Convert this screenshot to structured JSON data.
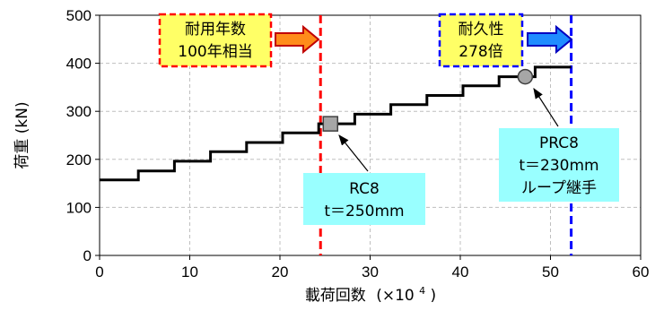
{
  "chart_data": {
    "type": "line",
    "title": "",
    "xlabel": "載荷回数",
    "xlabel_unit": "(×10",
    "xlabel_exp": "4",
    "xlabel_close": ")",
    "ylabel": "荷重 (kN)",
    "xlim": [
      0,
      60
    ],
    "ylim": [
      0,
      500
    ],
    "xticks": [
      0,
      10,
      20,
      30,
      40,
      50,
      60
    ],
    "yticks": [
      0,
      100,
      200,
      300,
      400,
      500
    ],
    "grid": true,
    "series": [
      {
        "type": "step",
        "color": "#000000",
        "x": [
          0,
          4.3,
          4.3,
          8.3,
          8.3,
          12.3,
          12.3,
          16.3,
          16.3,
          20.3,
          20.3,
          24.3,
          24.3,
          28.3,
          28.3,
          32.3,
          32.3,
          36.3,
          36.3,
          40.3,
          40.3,
          44.3,
          44.3,
          48.3,
          48.3,
          52.3
        ],
        "y": [
          157,
          157,
          176,
          176,
          196,
          196,
          216,
          216,
          235,
          235,
          255,
          255,
          274,
          274,
          294,
          294,
          314,
          314,
          333,
          333,
          353,
          353,
          372,
          372,
          392,
          392
        ]
      }
    ],
    "vertical_lines": [
      {
        "x": 24.5,
        "color": "#ff0000",
        "style": "dashed"
      },
      {
        "x": 52.3,
        "color": "#0000ff",
        "style": "dashed"
      }
    ],
    "markers": [
      {
        "x": 25.6,
        "y": 274,
        "shape": "square",
        "color": "#a6a6a6"
      },
      {
        "x": 47.2,
        "y": 372,
        "shape": "circle",
        "color": "#a6a6a6"
      }
    ],
    "annotations": [
      {
        "lines": [
          "耐用年数",
          "100年相当"
        ],
        "style": "yellow-red-dashed"
      },
      {
        "lines": [
          "耐久性",
          "278倍"
        ],
        "style": "yellow-blue-dashed"
      },
      {
        "lines": [
          "RC8",
          "t＝250mm"
        ],
        "style": "cyan"
      },
      {
        "lines": [
          "PRC8",
          "t＝230mm",
          "ループ継手"
        ],
        "style": "cyan"
      }
    ]
  },
  "colors": {
    "yellow_box": "#ffff66",
    "cyan_box": "#99ffff",
    "red": "#ff0000",
    "blue": "#0000ff",
    "orange_arrow": "#ff8c1a",
    "blue_arrow": "#1f8cff",
    "grid": "#bfbfbf"
  }
}
